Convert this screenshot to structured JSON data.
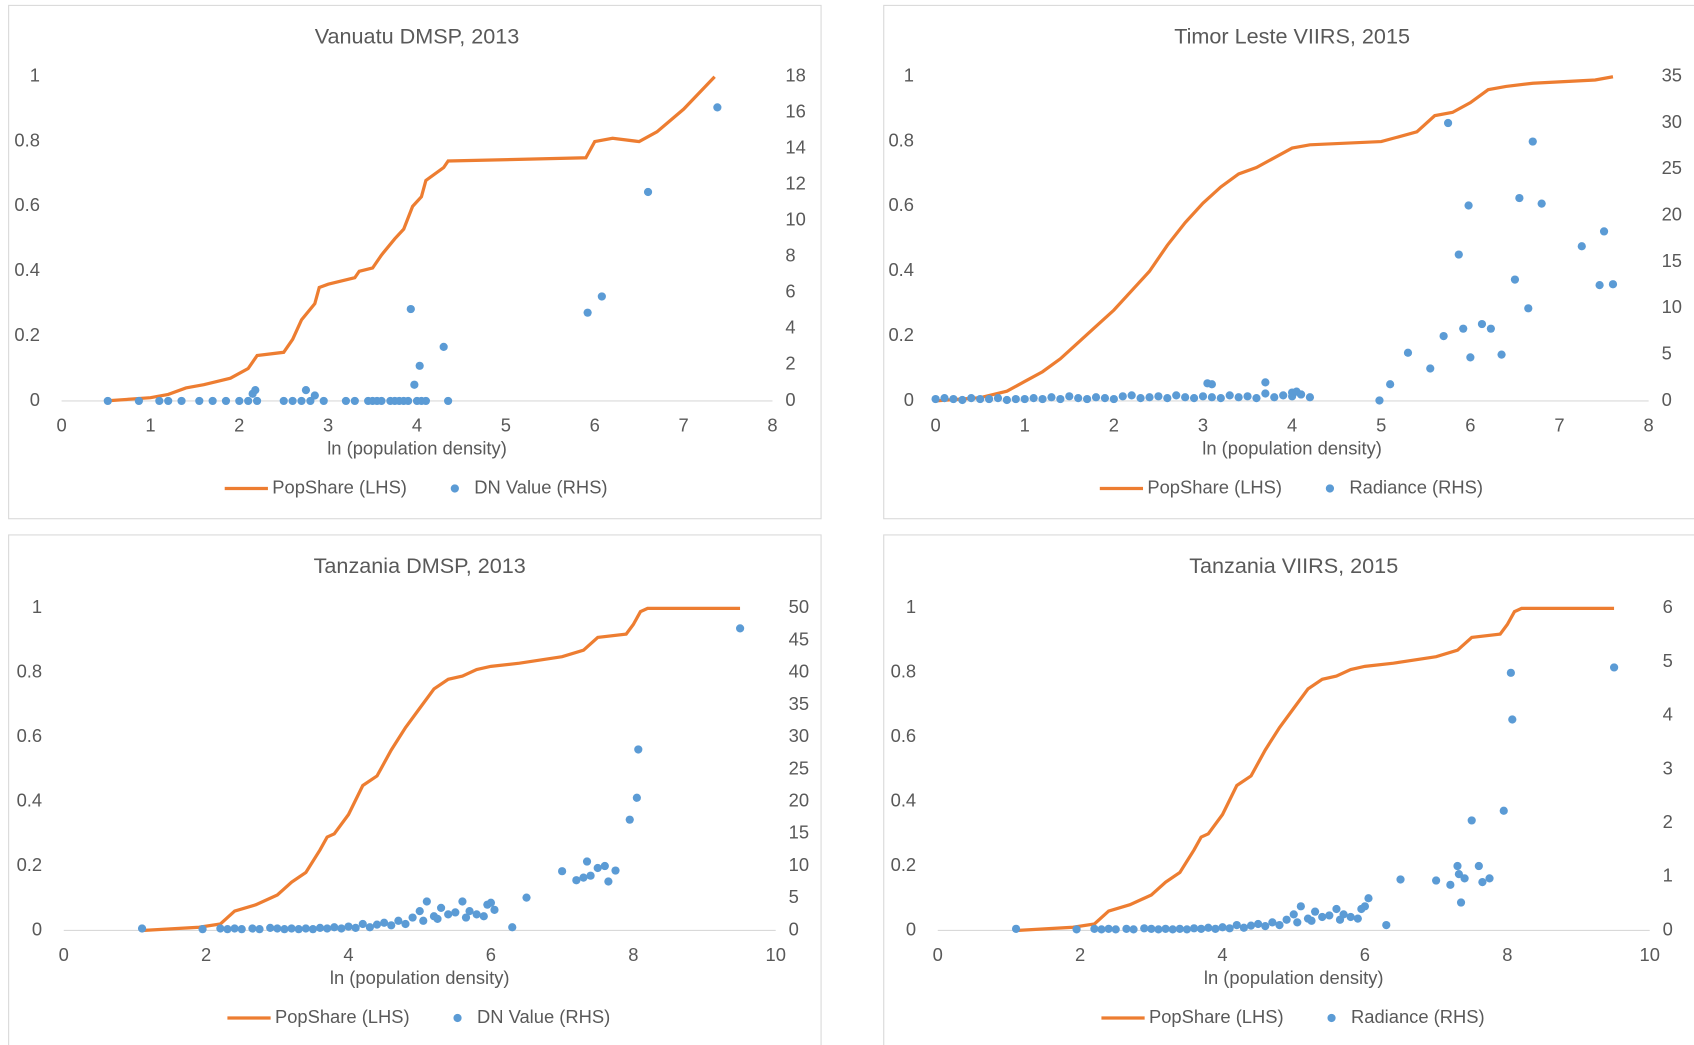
{
  "chart_data": [
    {
      "type": "combo",
      "title": "Vanuatu DMSP, 2013",
      "xlabel": "ln (population density)",
      "xlim": [
        0,
        8
      ],
      "xticks": [
        0,
        1,
        2,
        3,
        4,
        5,
        6,
        7,
        8
      ],
      "ylim": [
        0,
        1
      ],
      "yticks": [
        0,
        0.2,
        0.4,
        0.6,
        0.8,
        1
      ],
      "y2lim": [
        0,
        18
      ],
      "y2ticks": [
        0,
        2,
        4,
        6,
        8,
        10,
        12,
        14,
        16,
        18
      ],
      "series": [
        {
          "name": "PopShare (LHS)",
          "kind": "line",
          "color": "#ED7D31",
          "x": [
            0.5,
            1.0,
            1.2,
            1.4,
            1.6,
            1.9,
            2.1,
            2.2,
            2.5,
            2.6,
            2.7,
            2.85,
            2.9,
            3.0,
            3.3,
            3.35,
            3.5,
            3.6,
            3.75,
            3.85,
            3.95,
            4.05,
            4.1,
            4.3,
            4.35,
            5.9,
            6.0,
            6.2,
            6.5,
            6.7,
            7.0,
            7.35
          ],
          "values": [
            0,
            0.01,
            0.02,
            0.04,
            0.05,
            0.07,
            0.1,
            0.14,
            0.15,
            0.19,
            0.25,
            0.3,
            0.35,
            0.36,
            0.38,
            0.4,
            0.41,
            0.45,
            0.5,
            0.53,
            0.6,
            0.63,
            0.68,
            0.72,
            0.74,
            0.75,
            0.8,
            0.81,
            0.8,
            0.83,
            0.9,
            1.0
          ]
        },
        {
          "name": "DN Value (RHS)",
          "kind": "scatter",
          "axis": "y2",
          "color": "#5B9BD5",
          "x": [
            0.52,
            0.87,
            1.1,
            1.2,
            1.35,
            1.55,
            1.7,
            1.85,
            2.0,
            2.1,
            2.15,
            2.18,
            2.2,
            2.5,
            2.6,
            2.7,
            2.75,
            2.8,
            2.85,
            2.95,
            3.2,
            3.3,
            3.45,
            3.5,
            3.55,
            3.6,
            3.7,
            3.75,
            3.8,
            3.85,
            3.9,
            3.93,
            3.97,
            4.0,
            4.03,
            4.05,
            4.1,
            4.3,
            4.35,
            5.92,
            6.08,
            6.6,
            7.38
          ],
          "values": [
            0,
            0,
            0,
            0,
            0,
            0,
            0,
            0,
            0,
            0,
            0.4,
            0.6,
            0,
            0,
            0,
            0,
            0.6,
            0,
            0.3,
            0,
            0,
            0,
            0,
            0,
            0,
            0,
            0,
            0,
            0,
            0,
            0,
            5.1,
            0.9,
            0,
            1.95,
            0,
            0,
            3.0,
            0,
            4.9,
            5.8,
            11.6,
            16.3
          ]
        }
      ]
    },
    {
      "type": "combo",
      "title": "Timor Leste VIIRS, 2015",
      "xlabel": "ln (population density)",
      "xlim": [
        0,
        8
      ],
      "xticks": [
        0,
        1,
        2,
        3,
        4,
        5,
        6,
        7,
        8
      ],
      "ylim": [
        0,
        1
      ],
      "yticks": [
        0,
        0.2,
        0.4,
        0.6,
        0.8,
        1
      ],
      "y2lim": [
        0,
        35
      ],
      "y2ticks": [
        0,
        5,
        10,
        15,
        20,
        25,
        30,
        35
      ],
      "series": [
        {
          "name": "PopShare (LHS)",
          "kind": "line",
          "color": "#ED7D31",
          "x": [
            0,
            0.5,
            0.8,
            1.0,
            1.2,
            1.4,
            1.6,
            1.8,
            2.0,
            2.2,
            2.4,
            2.6,
            2.8,
            3.0,
            3.2,
            3.4,
            3.6,
            3.8,
            4.0,
            4.2,
            5.0,
            5.4,
            5.6,
            5.8,
            6.0,
            6.2,
            6.4,
            6.7,
            7.4,
            7.6
          ],
          "values": [
            0,
            0.01,
            0.03,
            0.06,
            0.09,
            0.13,
            0.18,
            0.23,
            0.28,
            0.34,
            0.4,
            0.48,
            0.55,
            0.61,
            0.66,
            0.7,
            0.72,
            0.75,
            0.78,
            0.79,
            0.8,
            0.83,
            0.88,
            0.89,
            0.92,
            0.96,
            0.97,
            0.98,
            0.99,
            1.0
          ]
        },
        {
          "name": "Radiance (RHS)",
          "kind": "scatter",
          "axis": "y2",
          "color": "#5B9BD5",
          "x": [
            0,
            0.1,
            0.2,
            0.3,
            0.4,
            0.5,
            0.6,
            0.7,
            0.8,
            0.9,
            1.0,
            1.1,
            1.2,
            1.3,
            1.4,
            1.5,
            1.6,
            1.7,
            1.8,
            1.9,
            2.0,
            2.1,
            2.2,
            2.3,
            2.4,
            2.5,
            2.6,
            2.7,
            2.8,
            2.9,
            3.0,
            3.1,
            3.2,
            3.3,
            3.4,
            3.5,
            3.6,
            3.7,
            3.8,
            3.9,
            4.0,
            4.1,
            4.2,
            3.05,
            3.1,
            3.7,
            4.0,
            4.05,
            4.1,
            4.98,
            5.1,
            5.3,
            5.55,
            5.7,
            5.75,
            5.87,
            5.92,
            5.98,
            6.0,
            6.13,
            6.23,
            6.35,
            6.5,
            6.55,
            6.65,
            6.7,
            6.8,
            7.25,
            7.45,
            7.5,
            7.6
          ],
          "values": [
            0.2,
            0.3,
            0.2,
            0.1,
            0.3,
            0.2,
            0.2,
            0.3,
            0.1,
            0.2,
            0.2,
            0.3,
            0.2,
            0.4,
            0.2,
            0.5,
            0.3,
            0.2,
            0.4,
            0.3,
            0.2,
            0.5,
            0.6,
            0.3,
            0.4,
            0.5,
            0.3,
            0.6,
            0.4,
            0.3,
            0.5,
            0.4,
            0.3,
            0.6,
            0.4,
            0.5,
            0.3,
            0.8,
            0.4,
            0.6,
            0.5,
            0.7,
            0.4,
            1.9,
            1.8,
            2.0,
            0.9,
            1.0,
            0.7,
            0.05,
            1.8,
            5.2,
            3.5,
            7.0,
            30,
            15.8,
            7.8,
            21.1,
            4.7,
            8.3,
            7.8,
            5.0,
            13.1,
            21.9,
            10.0,
            28.0,
            21.3,
            16.7,
            12.5,
            18.3,
            12.6
          ]
        }
      ]
    },
    {
      "type": "combo",
      "title": "Tanzania DMSP, 2013",
      "xlabel": "ln (population density)",
      "xlim": [
        0,
        10
      ],
      "xticks": [
        0,
        2,
        4,
        6,
        8,
        10
      ],
      "ylim": [
        0,
        1
      ],
      "yticks": [
        0,
        0.2,
        0.4,
        0.6,
        0.8,
        1
      ],
      "y2lim": [
        0,
        50
      ],
      "y2ticks": [
        0,
        5,
        10,
        15,
        20,
        25,
        30,
        35,
        40,
        45,
        50
      ],
      "series": [
        {
          "name": "PopShare (LHS)",
          "kind": "line",
          "color": "#ED7D31",
          "x": [
            1.1,
            1.9,
            2.2,
            2.4,
            2.7,
            3.0,
            3.2,
            3.4,
            3.6,
            3.7,
            3.8,
            4.0,
            4.2,
            4.4,
            4.6,
            4.8,
            5.0,
            5.2,
            5.4,
            5.6,
            5.8,
            6.0,
            6.4,
            7.0,
            7.3,
            7.5,
            7.9,
            8.0,
            8.1,
            8.2,
            9.5
          ],
          "values": [
            0,
            0.01,
            0.02,
            0.06,
            0.08,
            0.11,
            0.15,
            0.18,
            0.25,
            0.29,
            0.3,
            0.36,
            0.45,
            0.48,
            0.56,
            0.63,
            0.69,
            0.75,
            0.78,
            0.79,
            0.81,
            0.82,
            0.83,
            0.85,
            0.87,
            0.91,
            0.92,
            0.95,
            0.99,
            1.0,
            1.0
          ]
        },
        {
          "name": "DN Value (RHS)",
          "kind": "scatter",
          "axis": "y2",
          "color": "#5B9BD5",
          "x": [
            1.1,
            1.95,
            2.2,
            2.3,
            2.4,
            2.5,
            2.65,
            2.75,
            2.9,
            3.0,
            3.1,
            3.2,
            3.3,
            3.4,
            3.5,
            3.6,
            3.7,
            3.8,
            3.9,
            4.0,
            4.1,
            4.2,
            4.3,
            4.4,
            4.5,
            4.6,
            4.7,
            4.8,
            4.9,
            5.0,
            5.05,
            5.1,
            5.2,
            5.25,
            5.3,
            5.4,
            5.5,
            5.6,
            5.65,
            5.7,
            5.8,
            5.9,
            5.95,
            6.0,
            6.05,
            6.3,
            6.5,
            7.0,
            7.2,
            7.3,
            7.35,
            7.4,
            7.5,
            7.6,
            7.65,
            7.75,
            7.95,
            8.05,
            8.07,
            9.5
          ],
          "values": [
            0.3,
            0.2,
            0.3,
            0.2,
            0.3,
            0.2,
            0.3,
            0.2,
            0.4,
            0.3,
            0.2,
            0.3,
            0.2,
            0.3,
            0.2,
            0.4,
            0.3,
            0.5,
            0.3,
            0.6,
            0.4,
            1.0,
            0.5,
            0.9,
            1.2,
            0.8,
            1.5,
            1.0,
            2.0,
            3.0,
            1.5,
            4.5,
            2.2,
            1.8,
            3.5,
            2.5,
            2.8,
            4.5,
            2.0,
            3.0,
            2.5,
            2.2,
            4.0,
            4.3,
            3.2,
            0.5,
            5.1,
            9.2,
            7.8,
            8.2,
            10.7,
            8.5,
            9.7,
            10.0,
            7.6,
            9.3,
            17.2,
            20.6,
            28.1,
            46.9
          ]
        }
      ]
    },
    {
      "type": "combo",
      "title": "Tanzania VIIRS, 2015",
      "xlabel": "ln (population density)",
      "xlim": [
        0,
        10
      ],
      "xticks": [
        0,
        2,
        4,
        6,
        8,
        10
      ],
      "ylim": [
        0,
        1
      ],
      "yticks": [
        0,
        0.2,
        0.4,
        0.6,
        0.8,
        1
      ],
      "y2lim": [
        0,
        6
      ],
      "y2ticks": [
        0,
        1,
        2,
        3,
        4,
        5,
        6
      ],
      "series": [
        {
          "name": "PopShare (LHS)",
          "kind": "line",
          "color": "#ED7D31",
          "x": [
            1.1,
            1.9,
            2.2,
            2.4,
            2.7,
            3.0,
            3.2,
            3.4,
            3.6,
            3.7,
            3.8,
            4.0,
            4.2,
            4.4,
            4.6,
            4.8,
            5.0,
            5.2,
            5.4,
            5.6,
            5.8,
            6.0,
            6.4,
            7.0,
            7.3,
            7.5,
            7.9,
            8.0,
            8.1,
            8.2,
            9.5
          ],
          "values": [
            0,
            0.01,
            0.02,
            0.06,
            0.08,
            0.11,
            0.15,
            0.18,
            0.25,
            0.29,
            0.3,
            0.36,
            0.45,
            0.48,
            0.56,
            0.63,
            0.69,
            0.75,
            0.78,
            0.79,
            0.81,
            0.82,
            0.83,
            0.85,
            0.87,
            0.91,
            0.92,
            0.95,
            0.99,
            1.0,
            1.0
          ]
        },
        {
          "name": "Radiance (RHS)",
          "kind": "scatter",
          "axis": "y2",
          "color": "#5B9BD5",
          "x": [
            1.1,
            1.95,
            2.2,
            2.3,
            2.4,
            2.5,
            2.65,
            2.75,
            2.9,
            3.0,
            3.1,
            3.2,
            3.3,
            3.4,
            3.5,
            3.6,
            3.7,
            3.8,
            3.9,
            4.0,
            4.1,
            4.2,
            4.3,
            4.4,
            4.5,
            4.6,
            4.7,
            4.8,
            4.9,
            5.0,
            5.05,
            5.1,
            5.2,
            5.25,
            5.3,
            5.4,
            5.5,
            5.6,
            5.65,
            5.7,
            5.8,
            5.9,
            5.95,
            6.0,
            6.05,
            6.3,
            6.5,
            7.0,
            7.2,
            7.3,
            7.32,
            7.35,
            7.4,
            7.5,
            7.6,
            7.65,
            7.75,
            7.95,
            8.05,
            8.07,
            9.5
          ],
          "values": [
            0.03,
            0.02,
            0.03,
            0.02,
            0.03,
            0.02,
            0.03,
            0.02,
            0.04,
            0.03,
            0.02,
            0.03,
            0.02,
            0.03,
            0.02,
            0.04,
            0.03,
            0.05,
            0.03,
            0.06,
            0.04,
            0.1,
            0.05,
            0.09,
            0.12,
            0.08,
            0.15,
            0.1,
            0.2,
            0.3,
            0.15,
            0.45,
            0.22,
            0.18,
            0.35,
            0.25,
            0.28,
            0.4,
            0.2,
            0.3,
            0.25,
            0.22,
            0.4,
            0.45,
            0.6,
            0.1,
            0.95,
            0.93,
            0.85,
            1.2,
            1.05,
            0.52,
            0.97,
            2.05,
            1.2,
            0.9,
            0.97,
            2.23,
            4.8,
            3.93,
            4.9
          ]
        }
      ]
    }
  ]
}
